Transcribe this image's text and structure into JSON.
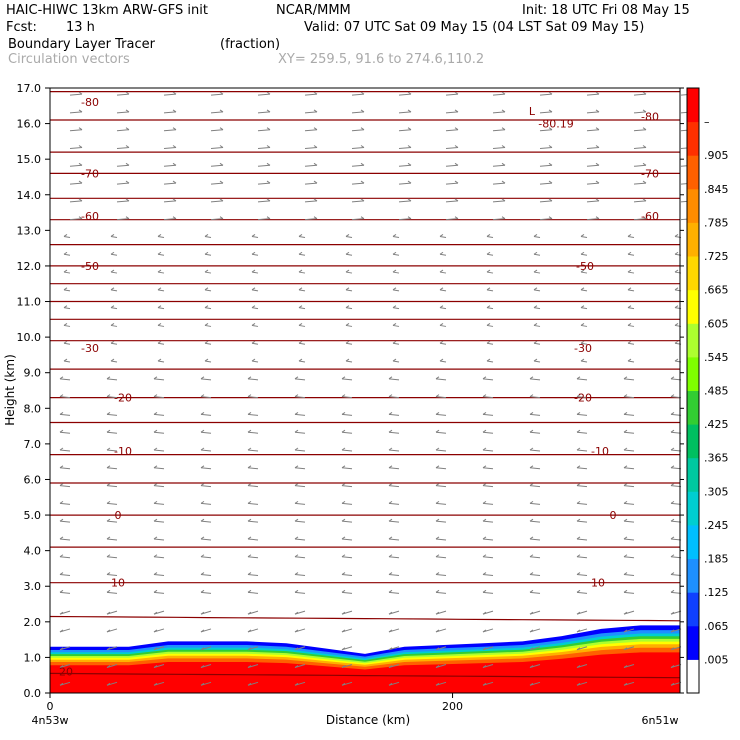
{
  "header": {
    "model_line": "HAIC-HIWC 13km ARW-GFS init",
    "org": "NCAR/MMM",
    "init": "Init: 18 UTC Fri 08 May 15",
    "fcst_label": "Fcst:",
    "fcst_value": "13 h",
    "valid": "Valid: 07 UTC Sat 09 May 15 (04 LST Sat 09 May 15)",
    "field_name": "Boundary Layer Tracer",
    "field_units": "(fraction)",
    "overlay_name": "Circulation vectors",
    "xy_range": "XY= 259.5, 91.6 to 274.6,110.2"
  },
  "chart_data": {
    "type": "heatmap",
    "ylabel": "Height (km)",
    "xlabel": "Distance (km)",
    "y_ticks": [
      "0.0",
      "1.0",
      "2.0",
      "3.0",
      "4.0",
      "5.0",
      "6.0",
      "7.0",
      "8.0",
      "9.0",
      "10.0",
      "11.0",
      "12.0",
      "13.0",
      "14.0",
      "15.0",
      "16.0",
      "17.0"
    ],
    "ylim": [
      0,
      17
    ],
    "x_ticks": [
      "0",
      "200"
    ],
    "xlim": [
      0,
      313
    ],
    "x_endpoints": [
      "4n53w",
      "6n51w"
    ],
    "colorbar": {
      "labels": [
        ".005",
        ".065",
        ".125",
        ".185",
        ".245",
        ".305",
        ".365",
        ".425",
        ".485",
        ".545",
        ".605",
        ".665",
        ".725",
        ".785",
        ".845",
        ".905",
        "–"
      ],
      "colors": [
        "#ffffff",
        "#0000ff",
        "#1040ff",
        "#1e90ff",
        "#00bfff",
        "#00ced1",
        "#00c8a0",
        "#00c060",
        "#32cd32",
        "#7fff00",
        "#adff2f",
        "#ffff00",
        "#ffd700",
        "#ffb000",
        "#ff8c00",
        "#ff6000",
        "#ff3000",
        "#ff0000"
      ]
    },
    "isotherm_contours": {
      "levels": [
        20,
        10,
        0,
        -10,
        -20,
        -30,
        -50,
        -60,
        -70,
        -80
      ],
      "labels": [
        "20",
        "10",
        "0",
        "-10",
        "-20",
        "-30",
        "-50",
        "-60",
        "-70",
        "-80",
        "-80.19"
      ],
      "low_marker": "L",
      "color": "#8b0000"
    },
    "boundary_layer_top_km": [
      1.3,
      1.3,
      1.3,
      1.45,
      1.45,
      1.45,
      1.4,
      1.25,
      1.1,
      1.3,
      1.35,
      1.4,
      1.45,
      1.6,
      1.8,
      1.9,
      1.9
    ],
    "vector_color": "#808080"
  }
}
